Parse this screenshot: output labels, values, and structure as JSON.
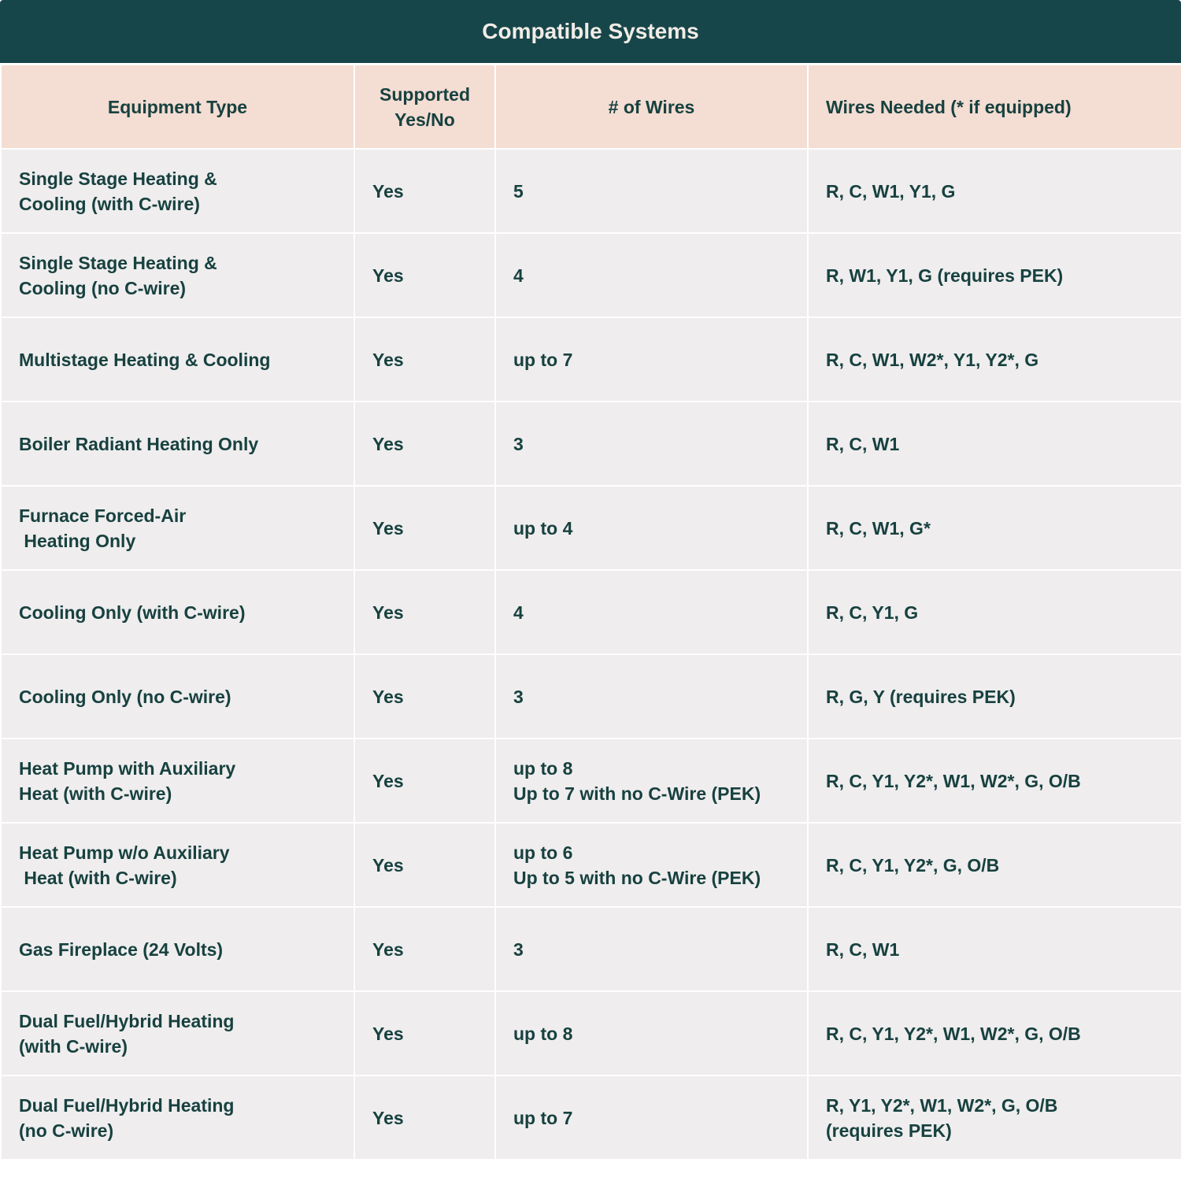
{
  "title": "Compatible Systems",
  "colors": {
    "title_bg": "#17464a",
    "header_bg": "#f4ddd3",
    "row_bg": "#efedee",
    "text": "#17413f"
  },
  "headers": [
    "Equipment Type",
    "Supported\nYes/No",
    "# of Wires",
    "Wires Needed (* if equipped)"
  ],
  "rows": [
    [
      "Single Stage Heating &\nCooling (with C-wire)",
      "Yes",
      "5",
      "R, C, W1, Y1, G"
    ],
    [
      "Single Stage Heating &\nCooling (no C-wire)",
      "Yes",
      "4",
      "R, W1, Y1, G (requires PEK)"
    ],
    [
      "Multistage Heating & Cooling",
      "Yes",
      "up to 7",
      "R, C, W1, W2*, Y1, Y2*, G"
    ],
    [
      "Boiler Radiant Heating Only",
      "Yes",
      "3",
      "R, C, W1"
    ],
    [
      "Furnace Forced-Air\n Heating Only",
      "Yes",
      "up to 4",
      "R, C, W1, G*"
    ],
    [
      "Cooling Only (with C-wire)",
      "Yes",
      "4",
      "R, C, Y1, G"
    ],
    [
      "Cooling Only (no C-wire)",
      "Yes",
      "3",
      "R, G, Y (requires PEK)"
    ],
    [
      "Heat Pump with Auxiliary\nHeat (with C-wire)",
      "Yes",
      "up to 8\nUp to 7 with no C-Wire (PEK)",
      "R, C, Y1, Y2*, W1, W2*, G, O/B"
    ],
    [
      "Heat Pump w/o Auxiliary\n Heat (with C-wire)",
      "Yes",
      "up to 6\nUp to 5 with no C-Wire (PEK)",
      "R, C, Y1, Y2*, G, O/B"
    ],
    [
      "Gas Fireplace (24 Volts)",
      "Yes",
      "3",
      "R, C, W1"
    ],
    [
      "Dual Fuel/Hybrid Heating\n(with C-wire)",
      "Yes",
      "up to 8",
      "R, C, Y1, Y2*, W1, W2*, G, O/B"
    ],
    [
      "Dual Fuel/Hybrid Heating\n(no C-wire)",
      "Yes",
      "up to 7",
      "R, Y1, Y2*, W1, W2*, G, O/B\n(requires PEK)"
    ]
  ]
}
